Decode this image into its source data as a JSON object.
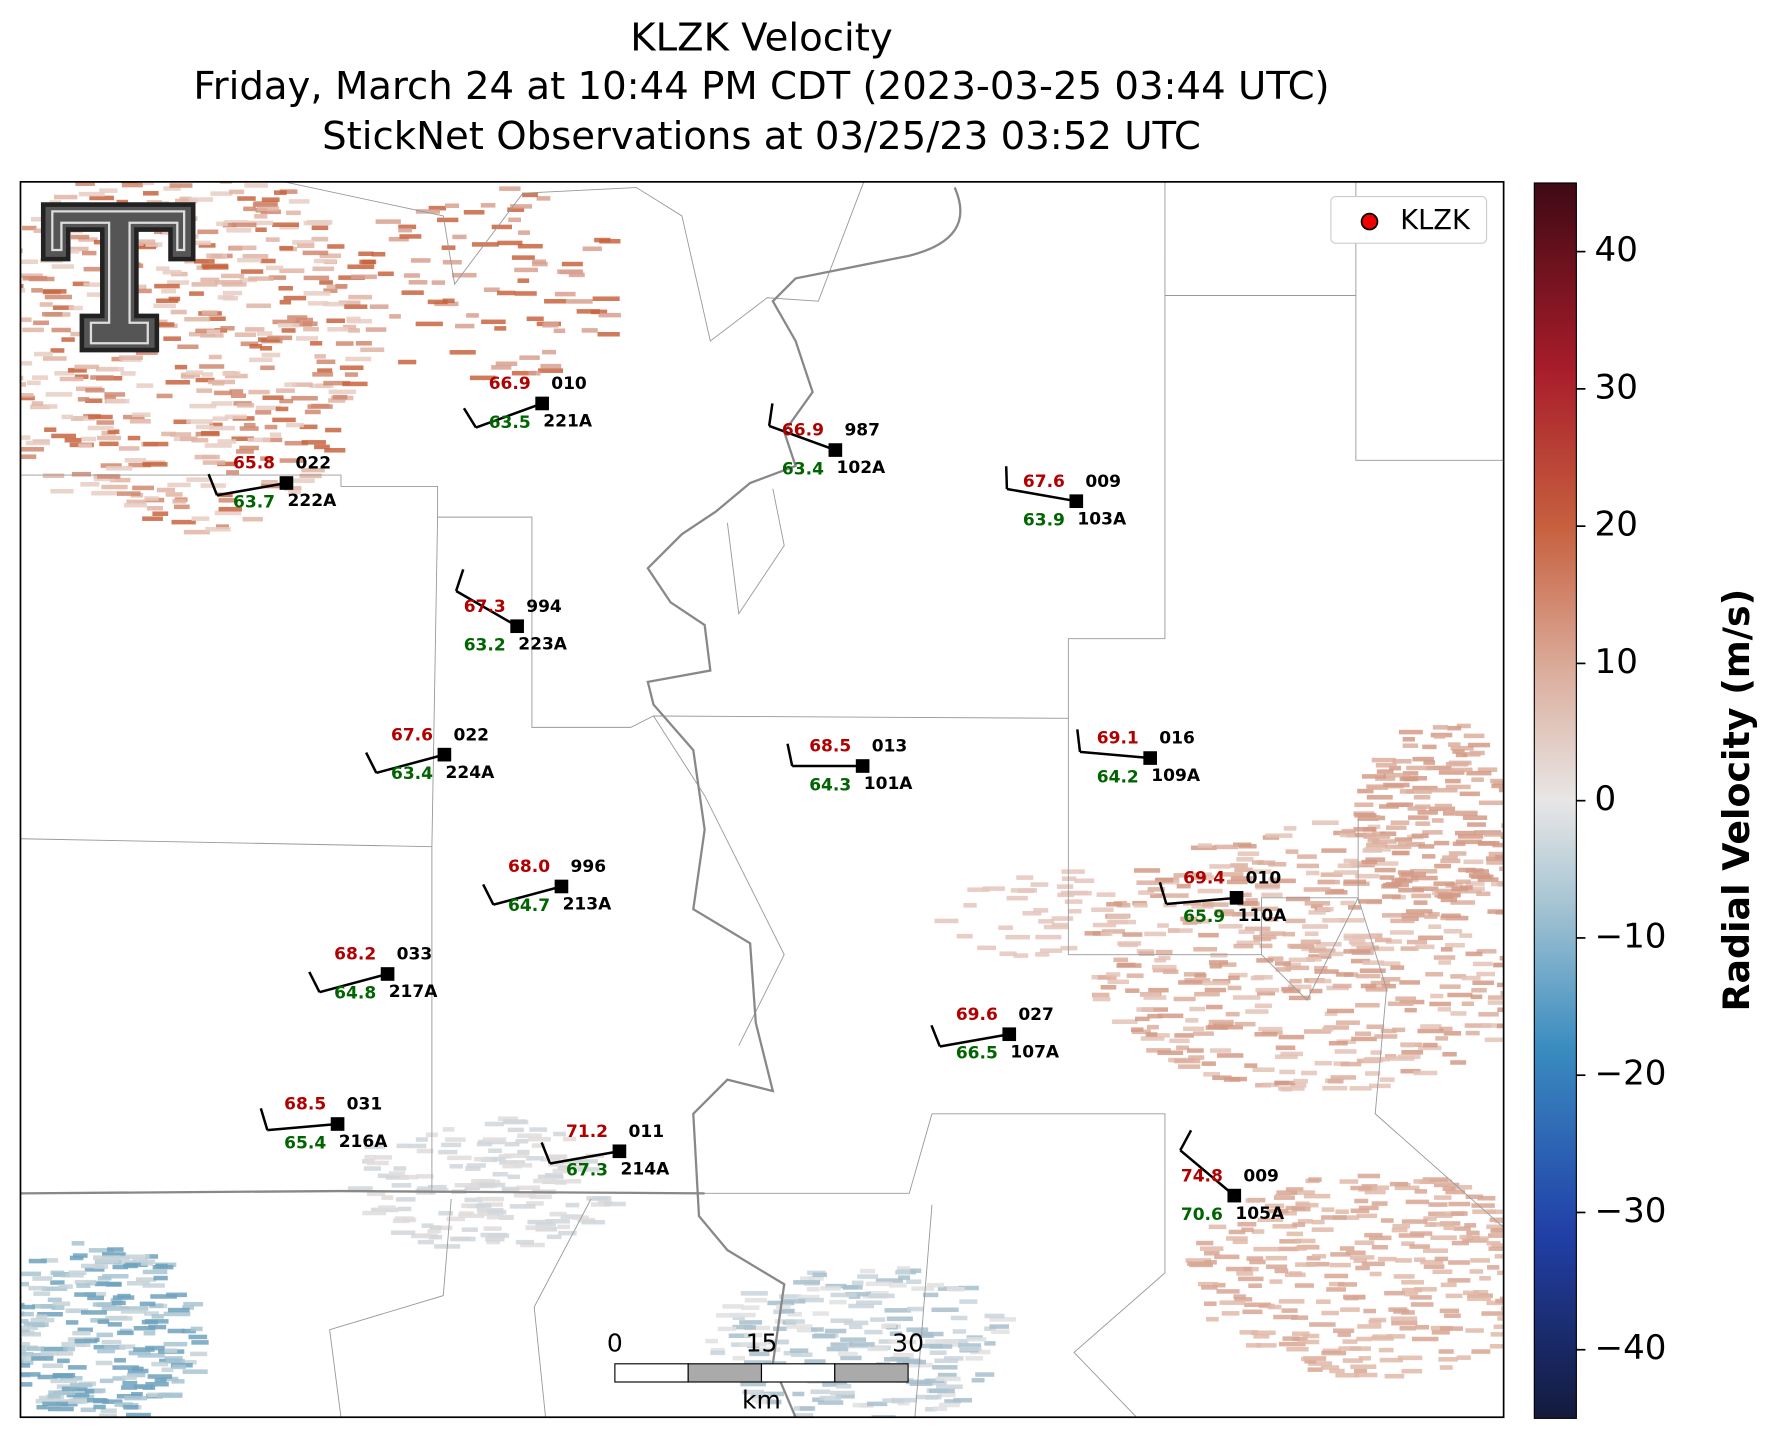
{
  "title_lines": [
    "KLZK Velocity",
    "Friday, March 24 at 10:44 PM CDT (2023-03-25 03:44 UTC)",
    "StickNet Observations at 03/25/23 03:52 UTC"
  ],
  "legend": "KLZK",
  "colorbar": {
    "label": "Radial Velocity (m/s)",
    "ylim": [
      -45,
      45
    ],
    "ticks": [
      40,
      30,
      20,
      10,
      0,
      {
        "value": -10,
        "label": "−10"
      },
      {
        "value": -20,
        "label": "−20"
      },
      {
        "value": -30,
        "label": "−30"
      },
      {
        "value": -40,
        "label": "−40"
      }
    ]
  },
  "scale_bar": {
    "ticks": [
      0,
      15,
      30
    ],
    "unit": "km"
  },
  "stations": [
    {
      "id": "221A",
      "temp": "66.9",
      "dew": "63.5",
      "pres": "010"
    },
    {
      "id": "102A",
      "temp": "66.9",
      "dew": "63.4",
      "pres": "987"
    },
    {
      "id": "222A",
      "temp": "65.8",
      "dew": "63.7",
      "pres": "022"
    },
    {
      "id": "103A",
      "temp": "67.6",
      "dew": "63.9",
      "pres": "009"
    },
    {
      "id": "223A",
      "temp": "67.3",
      "dew": "63.2",
      "pres": "994"
    },
    {
      "id": "224A",
      "temp": "67.6",
      "dew": "63.4",
      "pres": "022"
    },
    {
      "id": "101A",
      "temp": "68.5",
      "dew": "64.3",
      "pres": "013"
    },
    {
      "id": "109A",
      "temp": "69.1",
      "dew": "64.2",
      "pres": "016"
    },
    {
      "id": "213A",
      "temp": "68.0",
      "dew": "64.7",
      "pres": "996"
    },
    {
      "id": "110A",
      "temp": "69.4",
      "dew": "65.9",
      "pres": "010"
    },
    {
      "id": "217A",
      "temp": "68.2",
      "dew": "64.8",
      "pres": "033"
    },
    {
      "id": "107A",
      "temp": "69.6",
      "dew": "66.5",
      "pres": "027"
    },
    {
      "id": "216A",
      "temp": "68.5",
      "dew": "65.4",
      "pres": "031"
    },
    {
      "id": "214A",
      "temp": "71.2",
      "dew": "67.3",
      "pres": "011"
    },
    {
      "id": "105A",
      "temp": "74.8",
      "dew": "70.6",
      "pres": "009"
    }
  ]
}
